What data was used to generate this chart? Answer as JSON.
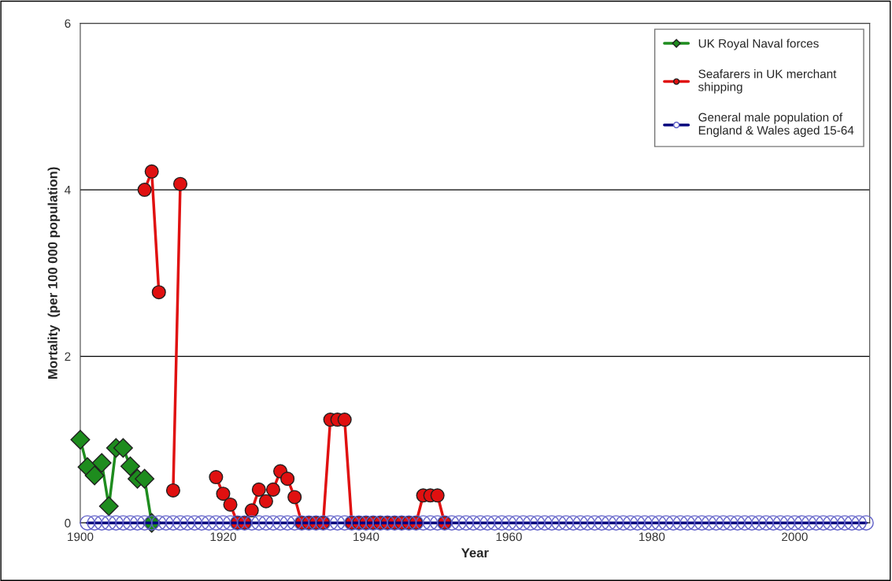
{
  "chart_data": {
    "type": "line",
    "xlabel": "Year",
    "ylabel": "Mortality  (per 100 000 population)",
    "xlim": [
      1900,
      2010.5
    ],
    "xticks": [
      1900,
      1920,
      1940,
      1960,
      1980,
      2000
    ],
    "ylim": [
      0,
      6
    ],
    "yticks": [
      0,
      2,
      4,
      6
    ],
    "grid": "y",
    "legend": "top right",
    "line_style": "solid",
    "series": [
      {
        "name": "UK Royal Naval forces",
        "color": "#1e8c1e",
        "marker": "diamond",
        "x": [
          1900,
          1901,
          1902,
          1903,
          1904,
          1905,
          1906,
          1907,
          1908,
          1909,
          1910
        ],
        "values": [
          1.0,
          0.67,
          0.57,
          0.72,
          0.2,
          0.9,
          0.9,
          0.68,
          0.53,
          0.53,
          0
        ]
      },
      {
        "name": "Seafarers in UK merchant\nshipping",
        "color": "#e01010",
        "marker": "circle",
        "x": [
          1909,
          1910,
          1911,
          1912,
          1913,
          1914,
          1915,
          1918,
          1919,
          1920,
          1921,
          1922,
          1923,
          1924,
          1925,
          1926,
          1927,
          1928,
          1929,
          1930,
          1931,
          1932,
          1933,
          1934,
          1935,
          1936,
          1937,
          1938,
          1939,
          1940,
          1941,
          1942,
          1943,
          1944,
          1945,
          1946,
          1947,
          1948,
          1949,
          1950,
          1951
        ],
        "values": [
          4.0,
          4.22,
          2.77,
          null,
          0.39,
          4.07,
          null,
          null,
          0.55,
          0.35,
          0.22,
          0,
          0,
          0.15,
          0.4,
          0.26,
          0.4,
          0.62,
          0.53,
          0.31,
          0,
          0,
          0,
          0,
          1.24,
          1.24,
          1.24,
          0,
          0,
          0,
          0,
          0,
          0,
          0,
          0,
          0,
          0,
          0.33,
          0.33,
          0.33,
          0
        ]
      },
      {
        "name": "General male population of\nEngland & Wales aged 15-64",
        "color": "#00007f",
        "marker": "circle",
        "x": [
          1901,
          1902,
          1903,
          1904,
          1905,
          1906,
          1907,
          1908,
          1909,
          1910,
          1911,
          1912,
          1913,
          1914,
          1915,
          1916,
          1917,
          1918,
          1919,
          1920,
          1921,
          1922,
          1923,
          1924,
          1925,
          1926,
          1927,
          1928,
          1929,
          1930,
          1931,
          1932,
          1933,
          1934,
          1935,
          1936,
          1937,
          1938,
          1939,
          1940,
          1941,
          1942,
          1943,
          1944,
          1945,
          1946,
          1947,
          1948,
          1949,
          1950,
          1951,
          1952,
          1953,
          1954,
          1955,
          1956,
          1957,
          1958,
          1959,
          1960,
          1961,
          1962,
          1963,
          1964,
          1965,
          1966,
          1967,
          1968,
          1969,
          1970,
          1971,
          1972,
          1973,
          1974,
          1975,
          1976,
          1977,
          1978,
          1979,
          1980,
          1981,
          1982,
          1983,
          1984,
          1985,
          1986,
          1987,
          1988,
          1989,
          1990,
          1991,
          1992,
          1993,
          1994,
          1995,
          1996,
          1997,
          1998,
          1999,
          2000,
          2001,
          2002,
          2003,
          2004,
          2005,
          2006,
          2007,
          2008,
          2009,
          2010
        ],
        "values": [
          0,
          0,
          0,
          0,
          0,
          0,
          0,
          0,
          0,
          0,
          0,
          0,
          0,
          0,
          0,
          0,
          0,
          0,
          0,
          0,
          0,
          0,
          0,
          0,
          0,
          0,
          0,
          0,
          0,
          0,
          0,
          0,
          0,
          0,
          0,
          0,
          0,
          0,
          0,
          0,
          0,
          0,
          0,
          0,
          0,
          0,
          0,
          0,
          0,
          0,
          0,
          0,
          0,
          0,
          0,
          0,
          0,
          0,
          0,
          0,
          0,
          0,
          0,
          0,
          0,
          0,
          0,
          0,
          0,
          0,
          0,
          0,
          0,
          0,
          0,
          0,
          0,
          0,
          0,
          0,
          0,
          0,
          0,
          0,
          0,
          0,
          0,
          0,
          0,
          0,
          0,
          0,
          0,
          0,
          0,
          0,
          0,
          0,
          0,
          0,
          0,
          0,
          0,
          0,
          0,
          0,
          0,
          0,
          0,
          0
        ]
      }
    ]
  }
}
